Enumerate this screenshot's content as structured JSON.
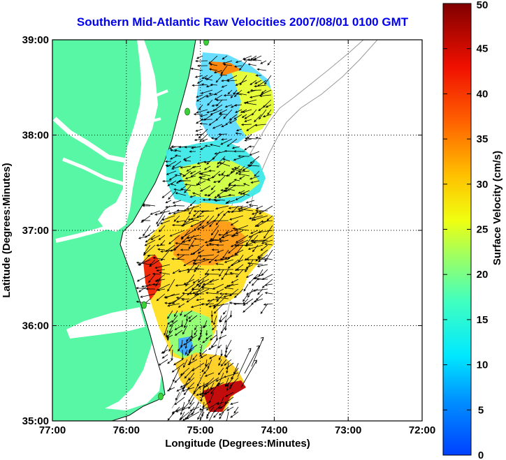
{
  "title": "Southern Mid-Atlantic Raw Velocities 2007/08/01 0100 GMT",
  "map": {
    "xlabel": "Longitude (Degrees:Minutes)",
    "ylabel": "Latitude (Degrees:Minutes)",
    "x_ticks": [
      "77:00",
      "76:00",
      "75:00",
      "74:00",
      "73:00",
      "72:00"
    ],
    "y_ticks": [
      "39:00",
      "38:00",
      "37:00",
      "36:00",
      "35:00"
    ],
    "xlim": [
      -77,
      -72
    ],
    "ylim": [
      35,
      39
    ],
    "grid": "dotted",
    "land_color": "#57f7a5",
    "water_color": "#ffffff",
    "bathymetry_color": "#9a9a9a",
    "station_color": "#3bd13b"
  },
  "colorbar": {
    "label": "Surface Velocity (cm/s)",
    "range": [
      0,
      50
    ],
    "tick_labels": [
      "0",
      "5",
      "10",
      "15",
      "20",
      "25",
      "30",
      "35",
      "40",
      "45",
      "50"
    ],
    "colormap": "jet"
  }
}
